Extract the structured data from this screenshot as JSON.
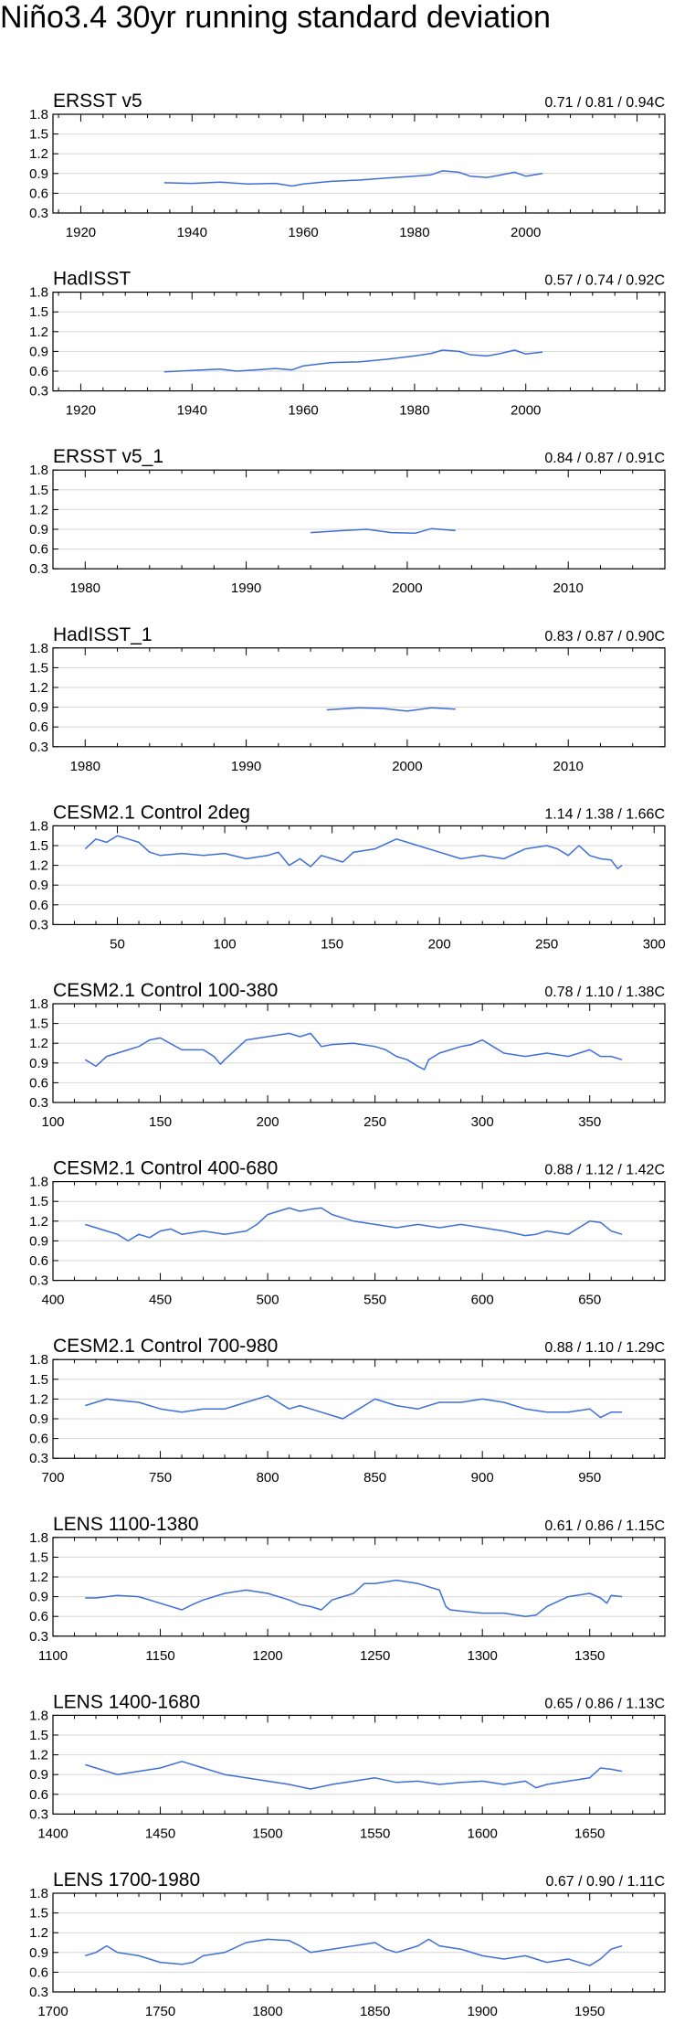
{
  "title": "Niño3.4 30yr running standard deviation",
  "colors": {
    "line": "#3d6fd9",
    "grid": "#d6d6d6",
    "axis": "#000000"
  },
  "chart_data": [
    {
      "type": "line",
      "title": "ERSST v5",
      "stats": "0.71 / 0.81 / 0.94C",
      "xlim": [
        1915,
        2025
      ],
      "xticks": [
        1920,
        1940,
        1960,
        1980,
        2000
      ],
      "ylim": [
        0.3,
        1.8
      ],
      "yticks": [
        "0.3",
        "0.6",
        "0.9",
        "1.2",
        "1.5",
        "1.8"
      ],
      "x": [
        1935,
        1940,
        1945,
        1950,
        1955,
        1958,
        1960,
        1965,
        1970,
        1975,
        1980,
        1983,
        1985,
        1988,
        1990,
        1993,
        1995,
        1998,
        2000,
        2003
      ],
      "y": [
        0.76,
        0.75,
        0.77,
        0.74,
        0.75,
        0.71,
        0.74,
        0.78,
        0.8,
        0.83,
        0.86,
        0.88,
        0.94,
        0.92,
        0.86,
        0.84,
        0.87,
        0.92,
        0.86,
        0.9
      ]
    },
    {
      "type": "line",
      "title": "HadISST",
      "stats": "0.57 / 0.74 / 0.92C",
      "xlim": [
        1915,
        2025
      ],
      "xticks": [
        1920,
        1940,
        1960,
        1980,
        2000
      ],
      "ylim": [
        0.3,
        1.8
      ],
      "yticks": [
        "0.3",
        "0.6",
        "0.9",
        "1.2",
        "1.5",
        "1.8"
      ],
      "x": [
        1935,
        1940,
        1945,
        1948,
        1950,
        1955,
        1958,
        1960,
        1965,
        1970,
        1975,
        1980,
        1983,
        1985,
        1988,
        1990,
        1993,
        1995,
        1998,
        2000,
        2003
      ],
      "y": [
        0.59,
        0.61,
        0.63,
        0.6,
        0.61,
        0.64,
        0.62,
        0.68,
        0.73,
        0.74,
        0.78,
        0.83,
        0.87,
        0.92,
        0.9,
        0.85,
        0.83,
        0.86,
        0.92,
        0.86,
        0.89
      ]
    },
    {
      "type": "line",
      "title": "ERSST v5_1",
      "stats": "0.84 / 0.87 / 0.91C",
      "xlim": [
        1978,
        2016
      ],
      "xticks": [
        1980,
        1990,
        2000,
        2010
      ],
      "ylim": [
        0.3,
        1.8
      ],
      "yticks": [
        "0.3",
        "0.6",
        "0.9",
        "1.2",
        "1.5",
        "1.8"
      ],
      "x": [
        1994,
        1996,
        1997.5,
        1999,
        2000.5,
        2001.5,
        2003
      ],
      "y": [
        0.85,
        0.88,
        0.9,
        0.85,
        0.84,
        0.91,
        0.88
      ]
    },
    {
      "type": "line",
      "title": "HadISST_1",
      "stats": "0.83 / 0.87 / 0.90C",
      "xlim": [
        1978,
        2016
      ],
      "xticks": [
        1980,
        1990,
        2000,
        2010
      ],
      "ylim": [
        0.3,
        1.8
      ],
      "yticks": [
        "0.3",
        "0.6",
        "0.9",
        "1.2",
        "1.5",
        "1.8"
      ],
      "x": [
        1995,
        1997,
        1998.5,
        2000,
        2001.5,
        2003
      ],
      "y": [
        0.86,
        0.89,
        0.88,
        0.84,
        0.89,
        0.87
      ]
    },
    {
      "type": "line",
      "title": "CESM2.1 Control 2deg",
      "stats": "1.14 / 1.38 / 1.66C",
      "xlim": [
        20,
        305
      ],
      "xticks": [
        50,
        100,
        150,
        200,
        250,
        300
      ],
      "ylim": [
        0.3,
        1.8
      ],
      "yticks": [
        "0.3",
        "0.6",
        "0.9",
        "1.2",
        "1.5",
        "1.8"
      ],
      "x": [
        35,
        40,
        45,
        50,
        55,
        60,
        65,
        70,
        80,
        90,
        100,
        110,
        120,
        125,
        130,
        135,
        140,
        145,
        150,
        155,
        160,
        170,
        180,
        185,
        190,
        200,
        210,
        220,
        230,
        240,
        250,
        255,
        260,
        265,
        270,
        275,
        280,
        283,
        285
      ],
      "y": [
        1.45,
        1.6,
        1.55,
        1.65,
        1.6,
        1.55,
        1.4,
        1.35,
        1.38,
        1.35,
        1.38,
        1.3,
        1.35,
        1.4,
        1.2,
        1.3,
        1.18,
        1.35,
        1.3,
        1.25,
        1.4,
        1.45,
        1.6,
        1.55,
        1.5,
        1.4,
        1.3,
        1.35,
        1.3,
        1.45,
        1.5,
        1.45,
        1.35,
        1.5,
        1.35,
        1.3,
        1.28,
        1.15,
        1.2
      ]
    },
    {
      "type": "line",
      "title": "CESM2.1 Control 100-380",
      "stats": "0.78 / 1.10 / 1.38C",
      "xlim": [
        100,
        385
      ],
      "xticks": [
        100,
        150,
        200,
        250,
        300,
        350
      ],
      "ylim": [
        0.3,
        1.8
      ],
      "yticks": [
        "0.3",
        "0.6",
        "0.9",
        "1.2",
        "1.5",
        "1.8"
      ],
      "x": [
        115,
        120,
        125,
        130,
        135,
        140,
        145,
        150,
        160,
        170,
        175,
        178,
        180,
        185,
        190,
        200,
        210,
        215,
        220,
        225,
        230,
        240,
        250,
        255,
        260,
        265,
        270,
        273,
        275,
        280,
        285,
        290,
        295,
        300,
        305,
        310,
        320,
        330,
        340,
        350,
        355,
        360,
        365
      ],
      "y": [
        0.95,
        0.85,
        1.0,
        1.05,
        1.1,
        1.15,
        1.25,
        1.28,
        1.1,
        1.1,
        1.0,
        0.88,
        0.95,
        1.1,
        1.25,
        1.3,
        1.35,
        1.3,
        1.35,
        1.15,
        1.18,
        1.2,
        1.15,
        1.1,
        1.0,
        0.95,
        0.85,
        0.8,
        0.95,
        1.05,
        1.1,
        1.15,
        1.18,
        1.25,
        1.15,
        1.05,
        1.0,
        1.05,
        1.0,
        1.1,
        1.0,
        1.0,
        0.95
      ]
    },
    {
      "type": "line",
      "title": "CESM2.1 Control 400-680",
      "stats": "0.88 / 1.12 / 1.42C",
      "xlim": [
        400,
        685
      ],
      "xticks": [
        400,
        450,
        500,
        550,
        600,
        650
      ],
      "ylim": [
        0.3,
        1.8
      ],
      "yticks": [
        "0.3",
        "0.6",
        "0.9",
        "1.2",
        "1.5",
        "1.8"
      ],
      "x": [
        415,
        420,
        425,
        430,
        435,
        440,
        445,
        450,
        455,
        460,
        470,
        480,
        490,
        495,
        500,
        505,
        510,
        515,
        520,
        525,
        530,
        540,
        550,
        560,
        570,
        580,
        590,
        600,
        610,
        620,
        625,
        630,
        640,
        650,
        655,
        660,
        665
      ],
      "y": [
        1.15,
        1.1,
        1.05,
        1.0,
        0.9,
        1.0,
        0.95,
        1.05,
        1.08,
        1.0,
        1.05,
        1.0,
        1.05,
        1.15,
        1.3,
        1.35,
        1.4,
        1.35,
        1.38,
        1.4,
        1.3,
        1.2,
        1.15,
        1.1,
        1.15,
        1.1,
        1.15,
        1.1,
        1.05,
        0.98,
        1.0,
        1.05,
        1.0,
        1.2,
        1.18,
        1.05,
        1.0
      ]
    },
    {
      "type": "line",
      "title": "CESM2.1 Control 700-980",
      "stats": "0.88 / 1.10 / 1.29C",
      "xlim": [
        700,
        985
      ],
      "xticks": [
        700,
        750,
        800,
        850,
        900,
        950
      ],
      "ylim": [
        0.3,
        1.8
      ],
      "yticks": [
        "0.3",
        "0.6",
        "0.9",
        "1.2",
        "1.5",
        "1.8"
      ],
      "x": [
        715,
        720,
        725,
        730,
        740,
        750,
        760,
        770,
        780,
        790,
        800,
        805,
        810,
        815,
        820,
        825,
        830,
        835,
        840,
        845,
        850,
        855,
        860,
        870,
        880,
        890,
        900,
        910,
        920,
        930,
        940,
        950,
        955,
        960,
        965
      ],
      "y": [
        1.1,
        1.15,
        1.2,
        1.18,
        1.15,
        1.05,
        1.0,
        1.05,
        1.05,
        1.15,
        1.25,
        1.15,
        1.05,
        1.1,
        1.05,
        1.0,
        0.95,
        0.9,
        1.0,
        1.1,
        1.2,
        1.15,
        1.1,
        1.05,
        1.15,
        1.15,
        1.2,
        1.15,
        1.05,
        1.0,
        1.0,
        1.05,
        0.92,
        1.0,
        1.0
      ]
    },
    {
      "type": "line",
      "title": "LENS 1100-1380",
      "stats": "0.61 / 0.86 / 1.15C",
      "xlim": [
        1100,
        1385
      ],
      "xticks": [
        1100,
        1150,
        1200,
        1250,
        1300,
        1350
      ],
      "ylim": [
        0.3,
        1.8
      ],
      "yticks": [
        "0.3",
        "0.6",
        "0.9",
        "1.2",
        "1.5",
        "1.8"
      ],
      "x": [
        1115,
        1120,
        1125,
        1130,
        1140,
        1150,
        1160,
        1165,
        1170,
        1180,
        1190,
        1200,
        1210,
        1215,
        1220,
        1225,
        1230,
        1240,
        1245,
        1250,
        1260,
        1270,
        1275,
        1280,
        1283,
        1285,
        1290,
        1300,
        1310,
        1320,
        1325,
        1330,
        1340,
        1350,
        1355,
        1358,
        1360,
        1365
      ],
      "y": [
        0.88,
        0.88,
        0.9,
        0.92,
        0.9,
        0.8,
        0.7,
        0.78,
        0.85,
        0.95,
        1.0,
        0.95,
        0.85,
        0.78,
        0.75,
        0.7,
        0.85,
        0.95,
        1.1,
        1.1,
        1.15,
        1.1,
        1.05,
        1.0,
        0.75,
        0.7,
        0.68,
        0.65,
        0.65,
        0.6,
        0.62,
        0.75,
        0.9,
        0.95,
        0.88,
        0.8,
        0.92,
        0.9
      ]
    },
    {
      "type": "line",
      "title": "LENS 1400-1680",
      "stats": "0.65 / 0.86 / 1.13C",
      "xlim": [
        1400,
        1685
      ],
      "xticks": [
        1400,
        1450,
        1500,
        1550,
        1600,
        1650
      ],
      "ylim": [
        0.3,
        1.8
      ],
      "yticks": [
        "0.3",
        "0.6",
        "0.9",
        "1.2",
        "1.5",
        "1.8"
      ],
      "x": [
        1415,
        1420,
        1425,
        1430,
        1440,
        1450,
        1460,
        1470,
        1480,
        1490,
        1500,
        1510,
        1520,
        1530,
        1540,
        1550,
        1560,
        1570,
        1580,
        1590,
        1600,
        1610,
        1620,
        1625,
        1630,
        1640,
        1650,
        1655,
        1660,
        1665
      ],
      "y": [
        1.05,
        1.0,
        0.95,
        0.9,
        0.95,
        1.0,
        1.1,
        1.0,
        0.9,
        0.85,
        0.8,
        0.75,
        0.68,
        0.75,
        0.8,
        0.85,
        0.78,
        0.8,
        0.75,
        0.78,
        0.8,
        0.75,
        0.8,
        0.7,
        0.75,
        0.8,
        0.85,
        1.0,
        0.98,
        0.95
      ]
    },
    {
      "type": "line",
      "title": "LENS 1700-1980",
      "stats": "0.67 / 0.90 / 1.11C",
      "xlim": [
        1700,
        1985
      ],
      "xticks": [
        1700,
        1750,
        1800,
        1850,
        1900,
        1950
      ],
      "ylim": [
        0.3,
        1.8
      ],
      "yticks": [
        "0.3",
        "0.6",
        "0.9",
        "1.2",
        "1.5",
        "1.8"
      ],
      "x": [
        1715,
        1720,
        1725,
        1730,
        1740,
        1750,
        1760,
        1765,
        1770,
        1780,
        1790,
        1800,
        1810,
        1815,
        1820,
        1830,
        1840,
        1850,
        1855,
        1860,
        1870,
        1875,
        1880,
        1890,
        1900,
        1910,
        1920,
        1930,
        1940,
        1950,
        1955,
        1960,
        1965
      ],
      "y": [
        0.85,
        0.9,
        1.0,
        0.9,
        0.85,
        0.75,
        0.72,
        0.75,
        0.85,
        0.9,
        1.05,
        1.1,
        1.08,
        1.0,
        0.9,
        0.95,
        1.0,
        1.05,
        0.95,
        0.9,
        1.0,
        1.1,
        1.0,
        0.95,
        0.85,
        0.8,
        0.85,
        0.75,
        0.8,
        0.7,
        0.8,
        0.95,
        1.0
      ]
    }
  ]
}
